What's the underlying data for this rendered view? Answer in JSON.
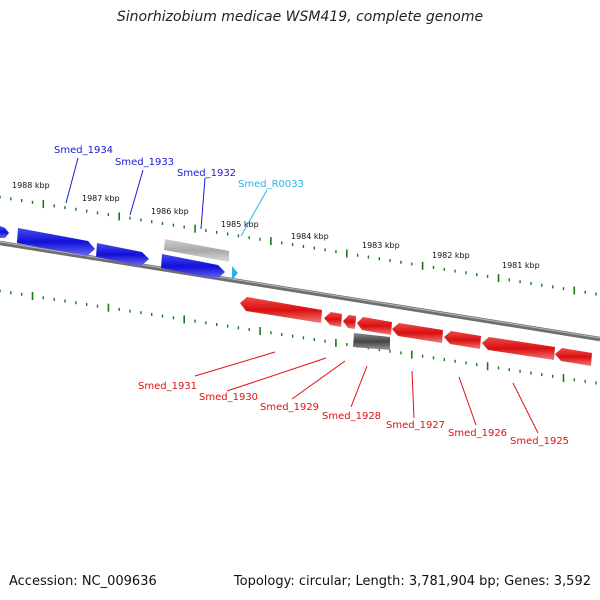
{
  "title": "Sinorhizobium medicae WSM419, complete genome",
  "footer": {
    "accession": "Accession: NC_009636",
    "topology": "Topology: circular; Length: 3,781,904 bp; Genes: 3,592"
  },
  "colors": {
    "forward_gene": "#1a1ad6",
    "reverse_gene": "#e01010",
    "rna_gene": "#2ab4e8",
    "pseudo_gene": "#aaaaaa",
    "dark_gene": "#555555",
    "ticks": "#1a7a1a",
    "backbone": "#808080"
  },
  "kbp_labels": [
    "1988 kbp",
    "1987 kbp",
    "1986 kbp",
    "1985 kbp",
    "1984 kbp",
    "1983 kbp",
    "1982 kbp",
    "1981 kbp"
  ],
  "forward_labels": [
    "Smed_1934",
    "Smed_1933",
    "Smed_1932"
  ],
  "rna_labels": [
    "Smed_R0033"
  ],
  "reverse_labels": [
    "Smed_1931",
    "Smed_1930",
    "Smed_1929",
    "Smed_1928",
    "Smed_1927",
    "Smed_1926",
    "Smed_1925"
  ]
}
